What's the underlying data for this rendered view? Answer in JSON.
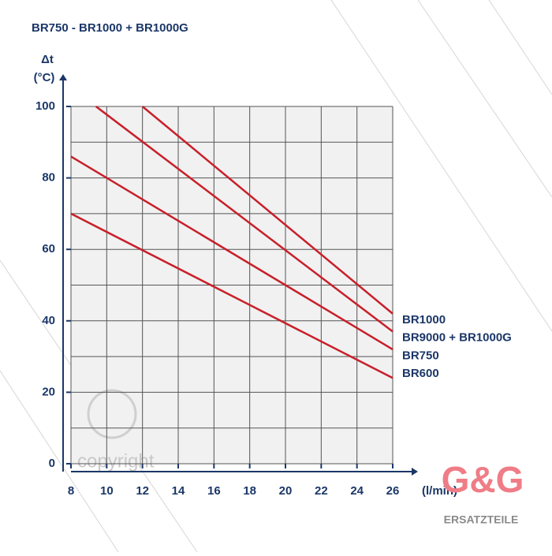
{
  "chart_data": {
    "type": "line",
    "title": "BR750 - BR1000 + BR1000G",
    "y_label_top": "Δt",
    "y_label": "(°C)",
    "x_label": "(l/min)",
    "watermark": "copyright",
    "logo": "G&G",
    "logo_caption": "ERSATZTEILE",
    "xlim": [
      8,
      26
    ],
    "xticks": [
      8,
      10,
      12,
      14,
      16,
      18,
      20,
      22,
      24,
      26
    ],
    "ylim": [
      0,
      100
    ],
    "yticks": [
      0,
      20,
      40,
      60,
      80,
      100
    ],
    "y_minor_ticks": [
      10,
      30,
      50,
      70,
      90
    ],
    "grid": true,
    "series": [
      {
        "name": "BR1000",
        "color": "#c8202a",
        "x": [
          12,
          26
        ],
        "values": [
          100,
          42
        ]
      },
      {
        "name": "BR9000 + BR1000G",
        "color": "#c8202a",
        "x": [
          9.4,
          26
        ],
        "values": [
          100,
          37
        ]
      },
      {
        "name": "BR750",
        "color": "#c8202a",
        "x": [
          8,
          26
        ],
        "values": [
          86,
          32
        ]
      },
      {
        "name": "BR600",
        "color": "#c8202a",
        "x": [
          8,
          26
        ],
        "values": [
          70,
          24
        ]
      }
    ]
  }
}
